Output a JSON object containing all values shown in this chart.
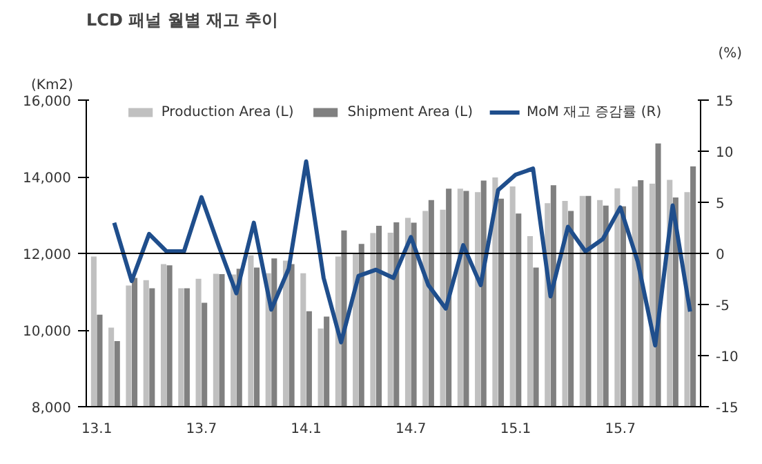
{
  "chart_data": {
    "type": "bar",
    "title": "LCD 패널 월별 재고 추이",
    "ylabel": "(Km2)",
    "y2label": "(%)",
    "categories": [
      "13.1",
      null,
      null,
      null,
      null,
      null,
      "13.7",
      null,
      null,
      null,
      null,
      null,
      "14.1",
      null,
      null,
      null,
      null,
      null,
      "14.7",
      null,
      null,
      null,
      null,
      null,
      "15.1",
      null,
      null,
      null,
      null,
      null,
      "15.7",
      null,
      null,
      null,
      null
    ],
    "series": [
      {
        "name": "Production Area (L)",
        "color": "#c0c0c0",
        "values": [
          11920,
          10065,
          11160,
          11300,
          11720,
          11090,
          11340,
          11470,
          11450,
          11950,
          11480,
          11810,
          11480,
          10040,
          11920,
          11990,
          12530,
          12540,
          12930,
          13110,
          13140,
          13690,
          13600,
          13980,
          13750,
          12450,
          13310,
          13370,
          13500,
          13390,
          13700,
          13750,
          13820,
          13920,
          13600
        ]
      },
      {
        "name": "Shipment Area (L)",
        "color": "#808080",
        "values": [
          10400,
          9710,
          11360,
          11090,
          11690,
          11090,
          10710,
          11460,
          11600,
          11630,
          11870,
          11720,
          10490,
          10350,
          12600,
          12250,
          12720,
          12810,
          12800,
          13390,
          13690,
          13630,
          13900,
          13430,
          13040,
          11630,
          13780,
          13110,
          13500,
          13250,
          13230,
          13910,
          14870,
          13460,
          14270
        ]
      },
      {
        "name": "MoM 재고 증감률 (R)",
        "type": "line",
        "axis": "y2",
        "color": "#1f4e8c",
        "values": [
          null,
          3.0,
          -2.7,
          1.9,
          0.2,
          0.2,
          5.5,
          0.7,
          -3.9,
          3.0,
          -5.5,
          -1.5,
          9.0,
          -2.4,
          -8.7,
          -2.2,
          -1.6,
          -2.4,
          1.6,
          -3.1,
          -5.4,
          0.8,
          -3.1,
          6.2,
          7.7,
          8.3,
          -4.2,
          2.6,
          0.2,
          1.4,
          4.5,
          -0.8,
          -9.0,
          4.7,
          -5.7
        ]
      }
    ],
    "ylim": [
      8000,
      16000
    ],
    "yticks": [
      {
        "value": 8000,
        "label": "8,000"
      },
      {
        "value": 10000,
        "label": "10,000"
      },
      {
        "value": 12000,
        "label": "12,000"
      },
      {
        "value": 14000,
        "label": "14,000"
      },
      {
        "value": 16000,
        "label": "16,000"
      }
    ],
    "y2lim": [
      -15,
      15
    ],
    "y2ticks": [
      -15,
      -10,
      -5,
      0,
      5,
      10,
      15
    ],
    "ref_lines": [
      {
        "axis": "y2",
        "value": 0,
        "color": "#000000"
      }
    ],
    "legend": "top",
    "grid": false
  }
}
